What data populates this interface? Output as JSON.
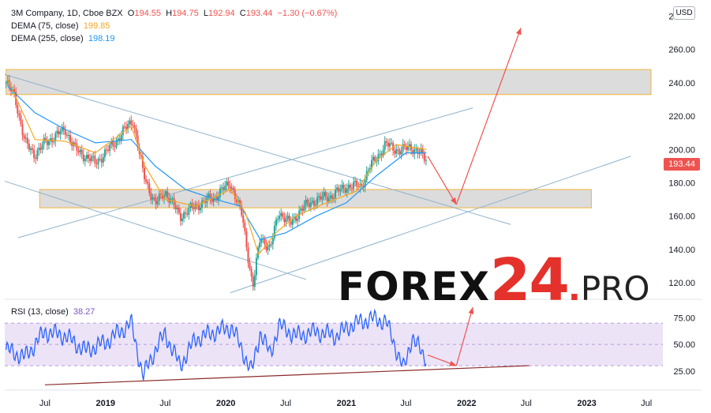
{
  "legend": {
    "symbol": "3M Company, 1D, Cboe BZX",
    "ohlc": [
      {
        "label": "O",
        "value": "194.55"
      },
      {
        "label": "H",
        "value": "194.75"
      },
      {
        "label": "L",
        "value": "192.94"
      },
      {
        "label": "C",
        "value": "193.44"
      }
    ],
    "change": "−1.30 (−0.67%)",
    "dema75_label": "DEMA (75, close)",
    "dema75_value": "199.85",
    "dema255_label": "DEMA (255, close)",
    "dema255_value": "198.19",
    "rsi_label": "RSI (13, close)",
    "rsi_value": "38.27"
  },
  "currency": "USD",
  "last_price": "193.44",
  "watermark": {
    "part1": "FOREX",
    "part2": "24",
    "dot": ".",
    "part3": "PRO"
  },
  "colors": {
    "bull": "#26a69a",
    "bear": "#ef5350",
    "dema75": "#f5a623",
    "dema255": "#2196f3",
    "rsi": "#2962ff",
    "rsi_band": "#ede3f7",
    "zone_fill": "#d6d6d6",
    "zone_border": "#f5b43a",
    "trend": "#8fb3cc",
    "arrow": "#ef5350",
    "support": "#8b2a2a"
  },
  "chart_data": [
    {
      "type": "candlestick",
      "title": "3M Company, 1D, Cboe BZX",
      "ylim": [
        112,
        285
      ],
      "y_ticks": [
        "280.00",
        "260.00",
        "240.00",
        "220.00",
        "200.00",
        "180.00",
        "160.00",
        "140.00",
        "120.00"
      ],
      "y_tick_values": [
        280,
        260,
        240,
        220,
        200,
        180,
        160,
        140,
        120
      ],
      "x_ticks": [
        "Jul",
        "2019",
        "Jul",
        "2020",
        "Jul",
        "2021",
        "Jul",
        "2022",
        "Jul",
        "2023",
        "Jul"
      ],
      "x_tick_dates": [
        "2018-07-01",
        "2019-01-01",
        "2019-07-01",
        "2020-01-01",
        "2020-07-01",
        "2021-01-01",
        "2021-07-01",
        "2022-01-01",
        "2022-07-01",
        "2023-01-01",
        "2023-07-01"
      ],
      "xlim": [
        "2018-03-01",
        "2023-08-20"
      ],
      "price_path": [
        {
          "date": "2018-03-05",
          "price": 240
        },
        {
          "date": "2018-04-01",
          "price": 232
        },
        {
          "date": "2018-05-01",
          "price": 204
        },
        {
          "date": "2018-06-01",
          "price": 197
        },
        {
          "date": "2018-07-01",
          "price": 204
        },
        {
          "date": "2018-08-01",
          "price": 208
        },
        {
          "date": "2018-09-01",
          "price": 212
        },
        {
          "date": "2018-10-01",
          "price": 200
        },
        {
          "date": "2018-11-01",
          "price": 196
        },
        {
          "date": "2018-12-01",
          "price": 192
        },
        {
          "date": "2019-01-01",
          "price": 198
        },
        {
          "date": "2019-02-01",
          "price": 205
        },
        {
          "date": "2019-03-01",
          "price": 212
        },
        {
          "date": "2019-03-25",
          "price": 218
        },
        {
          "date": "2019-04-26",
          "price": 185
        },
        {
          "date": "2019-06-01",
          "price": 167
        },
        {
          "date": "2019-07-01",
          "price": 175
        },
        {
          "date": "2019-08-15",
          "price": 160
        },
        {
          "date": "2019-10-01",
          "price": 166
        },
        {
          "date": "2019-12-01",
          "price": 172
        },
        {
          "date": "2020-01-15",
          "price": 180
        },
        {
          "date": "2020-02-20",
          "price": 160
        },
        {
          "date": "2020-03-23",
          "price": 117
        },
        {
          "date": "2020-04-15",
          "price": 148
        },
        {
          "date": "2020-05-15",
          "price": 140
        },
        {
          "date": "2020-06-10",
          "price": 163
        },
        {
          "date": "2020-07-15",
          "price": 155
        },
        {
          "date": "2020-08-15",
          "price": 164
        },
        {
          "date": "2020-10-01",
          "price": 170
        },
        {
          "date": "2020-11-15",
          "price": 172
        },
        {
          "date": "2021-01-01",
          "price": 178
        },
        {
          "date": "2021-02-15",
          "price": 178
        },
        {
          "date": "2021-03-15",
          "price": 190
        },
        {
          "date": "2021-05-01",
          "price": 203
        },
        {
          "date": "2021-06-15",
          "price": 199
        },
        {
          "date": "2021-07-15",
          "price": 202
        },
        {
          "date": "2021-08-15",
          "price": 197
        },
        {
          "date": "2021-09-01",
          "price": 194
        }
      ],
      "dema75": [
        {
          "date": "2018-03-10",
          "price": 242
        },
        {
          "date": "2018-06-01",
          "price": 206
        },
        {
          "date": "2018-09-01",
          "price": 205
        },
        {
          "date": "2018-12-01",
          "price": 198
        },
        {
          "date": "2019-03-20",
          "price": 214
        },
        {
          "date": "2019-05-01",
          "price": 190
        },
        {
          "date": "2019-07-01",
          "price": 170
        },
        {
          "date": "2019-10-01",
          "price": 166
        },
        {
          "date": "2020-01-15",
          "price": 176
        },
        {
          "date": "2020-03-01",
          "price": 162
        },
        {
          "date": "2020-04-10",
          "price": 137
        },
        {
          "date": "2020-06-01",
          "price": 150
        },
        {
          "date": "2020-08-01",
          "price": 160
        },
        {
          "date": "2020-11-01",
          "price": 168
        },
        {
          "date": "2021-02-01",
          "price": 175
        },
        {
          "date": "2021-04-01",
          "price": 193
        },
        {
          "date": "2021-06-01",
          "price": 203
        },
        {
          "date": "2021-09-01",
          "price": 200
        }
      ],
      "dema255": [
        {
          "date": "2018-03-10",
          "price": 238
        },
        {
          "date": "2018-06-01",
          "price": 222
        },
        {
          "date": "2018-09-01",
          "price": 212
        },
        {
          "date": "2018-12-01",
          "price": 204
        },
        {
          "date": "2019-03-20",
          "price": 206
        },
        {
          "date": "2019-06-01",
          "price": 190
        },
        {
          "date": "2019-09-01",
          "price": 176
        },
        {
          "date": "2019-12-01",
          "price": 170
        },
        {
          "date": "2020-02-15",
          "price": 166
        },
        {
          "date": "2020-04-15",
          "price": 146
        },
        {
          "date": "2020-07-01",
          "price": 150
        },
        {
          "date": "2020-10-01",
          "price": 160
        },
        {
          "date": "2021-01-01",
          "price": 168
        },
        {
          "date": "2021-04-01",
          "price": 184
        },
        {
          "date": "2021-07-01",
          "price": 198
        },
        {
          "date": "2021-09-01",
          "price": 198
        }
      ],
      "resistance_zone": {
        "from": "2018-03-05",
        "to": "2023-07-15",
        "low": 233,
        "high": 248
      },
      "support_zone": {
        "from": "2018-06-15",
        "to": "2023-01-15",
        "low": 165,
        "high": 176
      },
      "trend_lines": [
        {
          "from": [
            "2018-03-01",
            245
          ],
          "to": [
            "2022-05-15",
            155
          ]
        },
        {
          "from": [
            "2018-03-01",
            181
          ],
          "to": [
            "2020-09-01",
            122
          ]
        },
        {
          "from": [
            "2018-04-10",
            147
          ],
          "to": [
            "2022-01-20",
            225
          ]
        },
        {
          "from": [
            "2020-01-15",
            114
          ],
          "to": [
            "2023-05-15",
            196
          ]
        }
      ],
      "forecast_arrows": [
        {
          "from": [
            "2021-09-05",
            196
          ],
          "to": [
            "2021-12-01",
            167
          ]
        },
        {
          "from": [
            "2021-12-01",
            167
          ],
          "to": [
            "2022-06-15",
            273
          ]
        }
      ]
    },
    {
      "type": "line",
      "title": "RSI (13, close)",
      "ylim": [
        10,
        88
      ],
      "y_ticks": [
        "75.00",
        "50.00",
        "25.00"
      ],
      "y_tick_values": [
        75,
        50,
        25
      ],
      "band": [
        30,
        70
      ],
      "rsi_path": [
        {
          "date": "2018-03-05",
          "value": 45
        },
        {
          "date": "2018-05-01",
          "value": 38
        },
        {
          "date": "2018-07-01",
          "value": 62
        },
        {
          "date": "2018-09-01",
          "value": 58
        },
        {
          "date": "2018-11-01",
          "value": 44
        },
        {
          "date": "2019-01-01",
          "value": 52
        },
        {
          "date": "2019-03-20",
          "value": 70
        },
        {
          "date": "2019-04-25",
          "value": 20
        },
        {
          "date": "2019-06-01",
          "value": 45
        },
        {
          "date": "2019-07-01",
          "value": 60
        },
        {
          "date": "2019-08-15",
          "value": 30
        },
        {
          "date": "2019-10-01",
          "value": 55
        },
        {
          "date": "2019-12-01",
          "value": 62
        },
        {
          "date": "2020-01-20",
          "value": 66
        },
        {
          "date": "2020-03-20",
          "value": 24
        },
        {
          "date": "2020-04-15",
          "value": 62
        },
        {
          "date": "2020-05-15",
          "value": 40
        },
        {
          "date": "2020-06-10",
          "value": 68
        },
        {
          "date": "2020-08-01",
          "value": 58
        },
        {
          "date": "2020-10-01",
          "value": 62
        },
        {
          "date": "2020-12-01",
          "value": 58
        },
        {
          "date": "2021-01-15",
          "value": 68
        },
        {
          "date": "2021-03-15",
          "value": 74
        },
        {
          "date": "2021-05-01",
          "value": 72
        },
        {
          "date": "2021-06-25",
          "value": 26
        },
        {
          "date": "2021-07-20",
          "value": 58
        },
        {
          "date": "2021-08-20",
          "value": 40
        },
        {
          "date": "2021-09-01",
          "value": 38
        }
      ],
      "support_line": {
        "from": [
          "2018-07-01",
          12
        ],
        "to": [
          "2022-07-10",
          30
        ]
      },
      "forecast_arrows": [
        {
          "from": [
            "2021-09-05",
            40
          ],
          "to": [
            "2021-12-01",
            30
          ]
        },
        {
          "from": [
            "2021-12-01",
            30
          ],
          "to": [
            "2022-01-20",
            85
          ]
        }
      ]
    }
  ]
}
